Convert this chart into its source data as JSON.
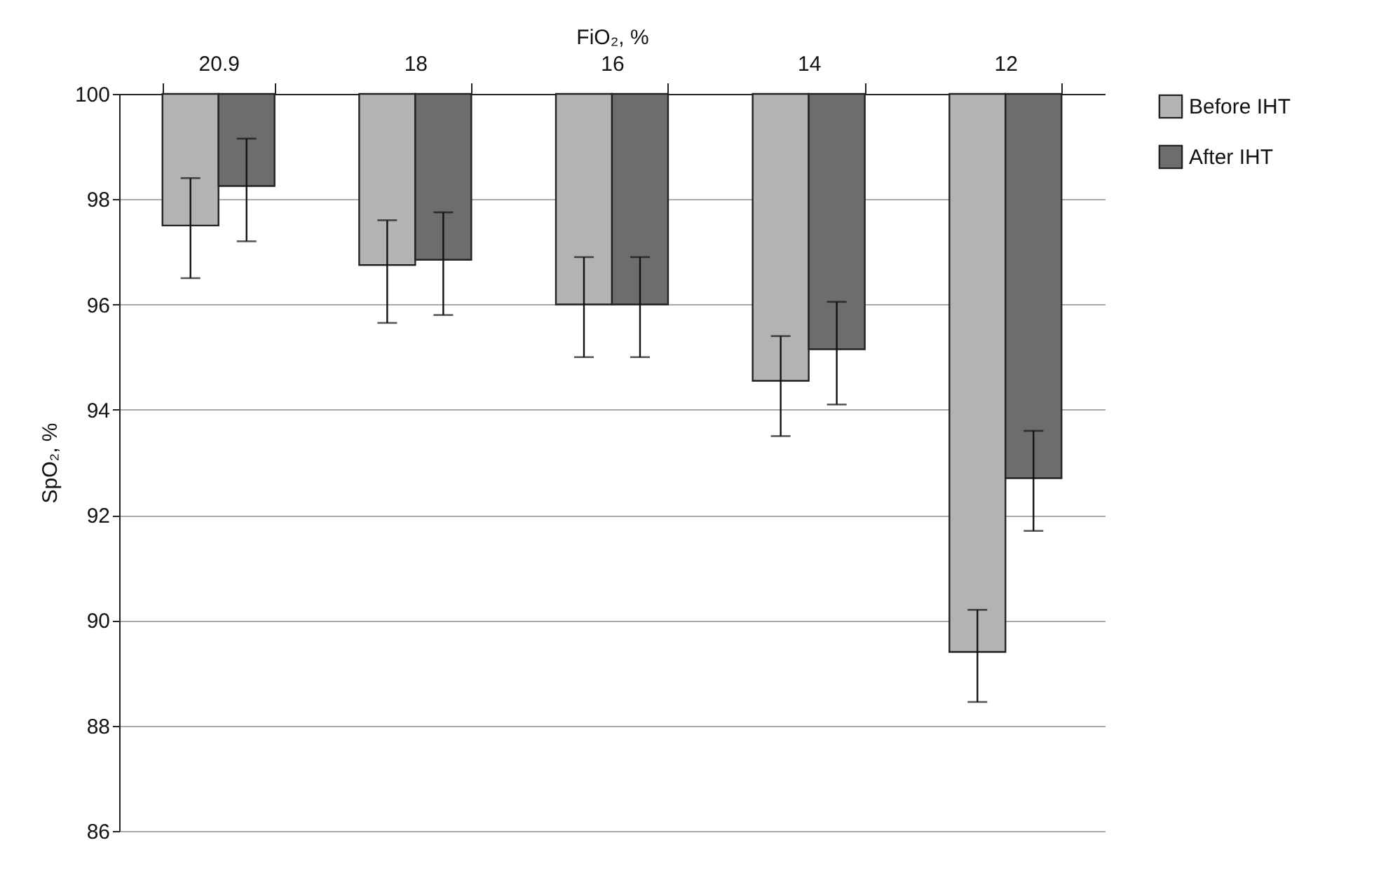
{
  "chart_data": {
    "type": "bar",
    "xlabel": "FiO₂, %",
    "ylabel": "SpO₂, %",
    "categories": [
      "20.9",
      "18",
      "16",
      "14",
      "12"
    ],
    "series": [
      {
        "name": "Before IHT",
        "color": "#b3b3b5",
        "base": [
          100,
          100,
          100,
          100,
          100
        ],
        "values": [
          -2.5,
          -3.25,
          -4.0,
          -5.45,
          -10.6
        ],
        "errors": [
          [
            96.5,
            98.4
          ],
          [
            95.65,
            97.6
          ],
          [
            95.0,
            96.9
          ],
          [
            93.5,
            95.4
          ],
          [
            88.45,
            90.2
          ]
        ]
      },
      {
        "name": "After IHT",
        "color": "#6d6d6b",
        "base": [
          100,
          100,
          100,
          100,
          100
        ],
        "values": [
          -1.75,
          -3.15,
          -4.0,
          -4.85,
          -7.3
        ],
        "errors": [
          [
            97.2,
            99.15
          ],
          [
            95.8,
            97.75
          ],
          [
            95.0,
            96.9
          ],
          [
            94.1,
            96.05
          ],
          [
            91.7,
            93.6
          ]
        ]
      }
    ],
    "ylim": [
      86,
      100
    ],
    "yticks": [
      86,
      88,
      90,
      92,
      94,
      96,
      98,
      100
    ],
    "grid": "y",
    "legend": "right"
  }
}
